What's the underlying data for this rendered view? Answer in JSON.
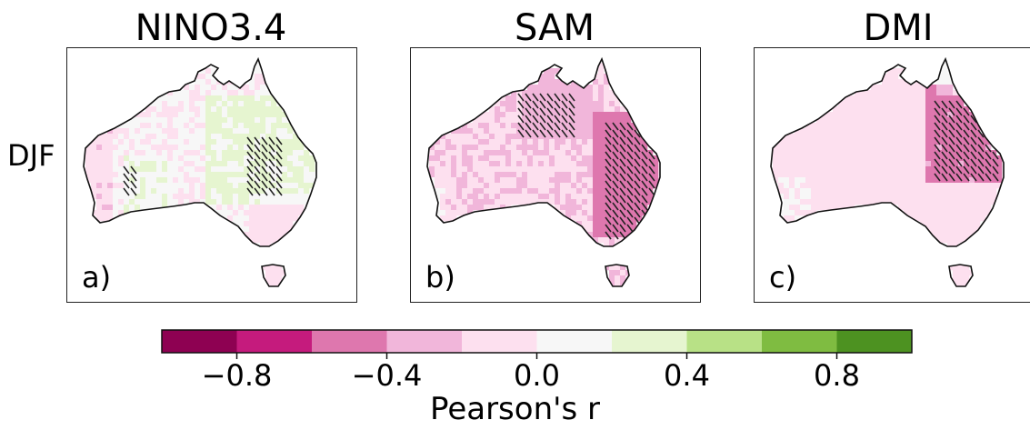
{
  "row_label": "DJF",
  "panels": [
    {
      "title": "NINO3.4",
      "label": "a)",
      "dominant": "mixed-weak"
    },
    {
      "title": "SAM",
      "label": "b)",
      "dominant": "negative"
    },
    {
      "title": "DMI",
      "label": "c)",
      "dominant": "negative-east"
    }
  ],
  "colorbar": {
    "label": "Pearson's r",
    "range": [
      -1.0,
      1.0
    ],
    "levels": [
      -1.0,
      -0.8,
      -0.6,
      -0.4,
      -0.2,
      0.0,
      0.2,
      0.4,
      0.6,
      0.8,
      1.0
    ],
    "colors": [
      "#8e0152",
      "#c51b7d",
      "#de77ae",
      "#f1b6da",
      "#fde0ef",
      "#f7f7f7",
      "#e6f5d0",
      "#b8e186",
      "#7fbc41",
      "#4d9221"
    ],
    "tick_values": [
      -0.8,
      -0.4,
      0.0,
      0.4,
      0.8
    ],
    "tick_labels": [
      "−0.8",
      "−0.4",
      "0.0",
      "0.4",
      "0.8"
    ]
  }
}
